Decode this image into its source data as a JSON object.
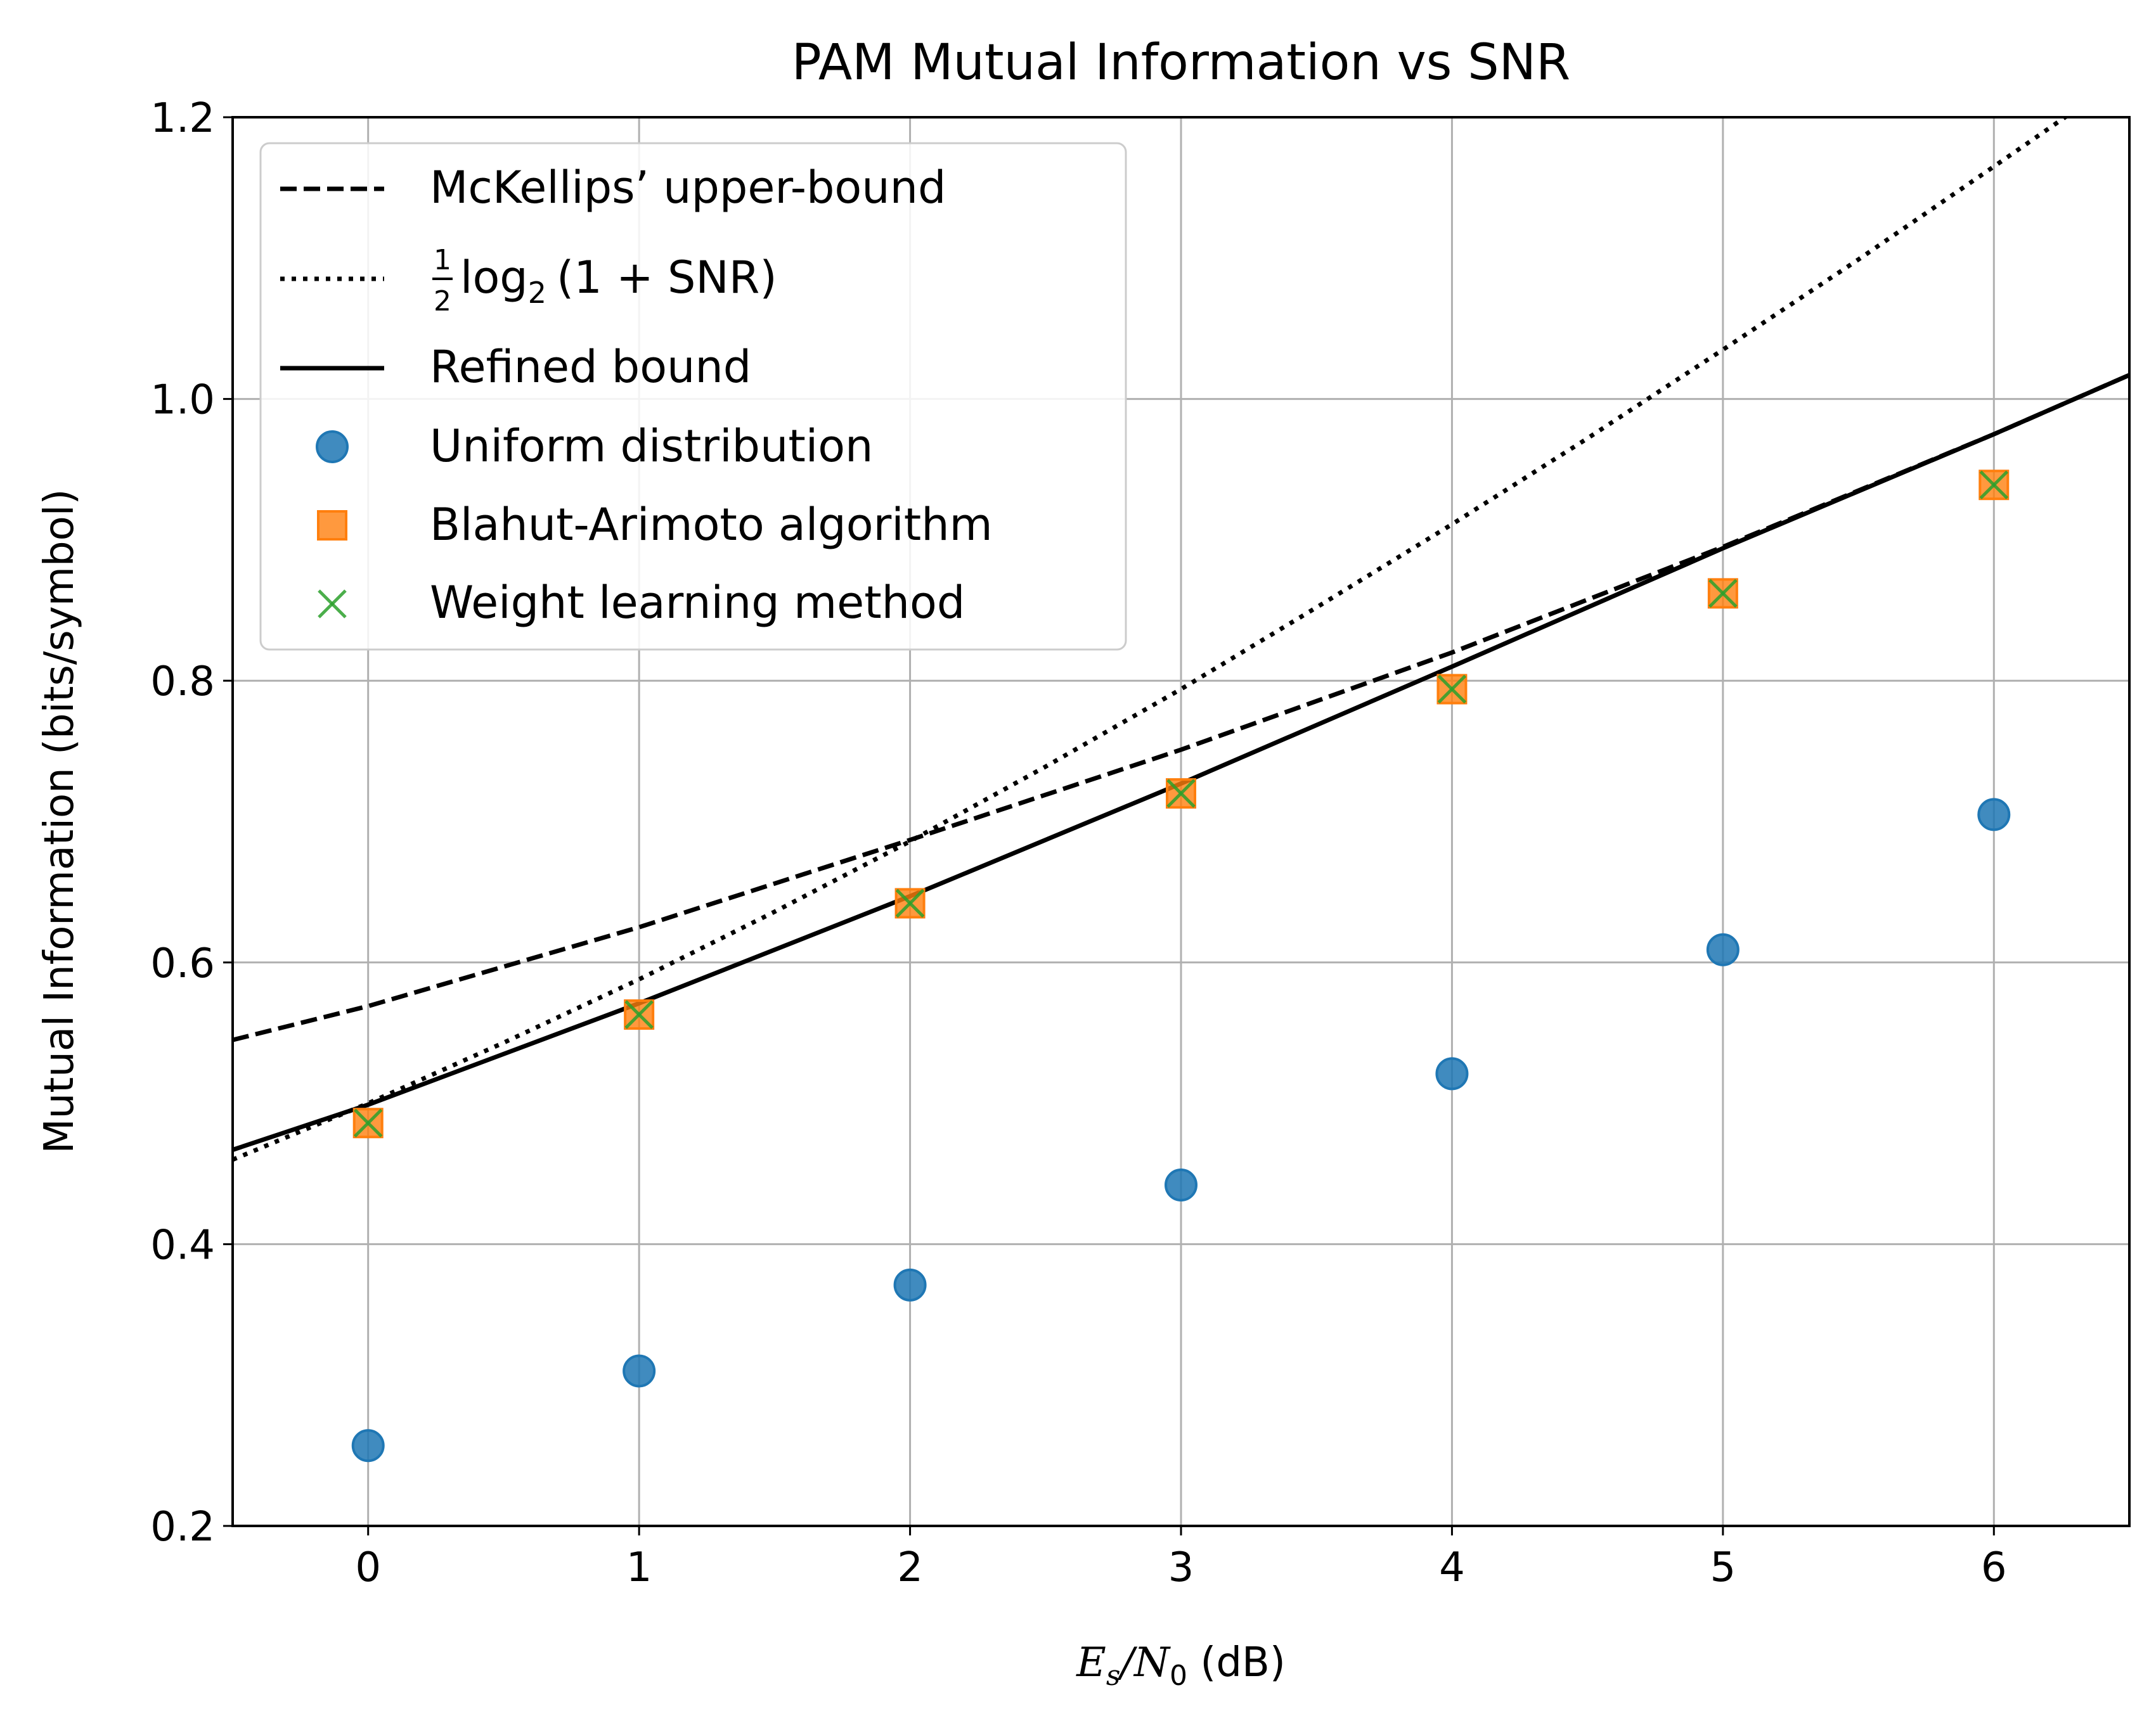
{
  "chart_data": {
    "type": "line",
    "title": "PAM Mutual Information vs SNR",
    "xlabel": {
      "parts": [
        "E",
        "s",
        "/",
        "N",
        "0",
        " (dB)"
      ]
    },
    "ylabel": "Mutual Information (bits/symbol)",
    "xlim": [
      -0.5,
      6.5
    ],
    "ylim": [
      0.2,
      1.2
    ],
    "x_ticks": [
      0,
      1,
      2,
      3,
      4,
      5,
      6
    ],
    "y_ticks": [
      0.2,
      0.4,
      0.6,
      0.8,
      1.0,
      1.2
    ],
    "x_tick_labels": [
      "0",
      "1",
      "2",
      "3",
      "4",
      "5",
      "6"
    ],
    "y_tick_labels": [
      "0.2",
      "0.4",
      "0.6",
      "0.8",
      "1.0",
      "1.2"
    ],
    "grid": true,
    "legend_position": "upper-left",
    "series": [
      {
        "name": "McKellips’ upper-bound",
        "style": "dashed",
        "color": "#000000",
        "x": [
          -0.5,
          0,
          1,
          2,
          3,
          4,
          5,
          6,
          6.5
        ],
        "y": [
          0.545,
          0.569,
          0.625,
          0.687,
          0.751,
          0.82,
          0.895,
          0.975,
          1.017
        ]
      },
      {
        "name_parts": {
          "frac_num": "1",
          "frac_den": "2",
          "fn": "log",
          "sub": "2",
          "arg": "(1 + SNR)"
        },
        "style": "dotted",
        "color": "#000000",
        "x": [
          -0.5,
          0,
          0.5,
          1,
          1.5,
          2,
          2.5,
          3,
          3.5,
          4,
          4.5,
          5,
          5.5,
          6,
          6.3
        ],
        "y": [
          0.46,
          0.5,
          0.543,
          0.588,
          0.636,
          0.686,
          0.739,
          0.794,
          0.852,
          0.911,
          0.972,
          1.035,
          1.099,
          1.165,
          1.205
        ]
      },
      {
        "name": "Refined bound",
        "style": "solid",
        "color": "#000000",
        "x": [
          -0.5,
          0,
          1,
          2,
          3,
          4,
          5,
          6,
          6.5
        ],
        "y": [
          0.467,
          0.499,
          0.571,
          0.647,
          0.727,
          0.81,
          0.894,
          0.975,
          1.017
        ]
      },
      {
        "name": "Uniform distribution",
        "style": "marker-circle",
        "color": "#1f77b4",
        "x": [
          0,
          1,
          2,
          3,
          4,
          5,
          6
        ],
        "y": [
          0.257,
          0.31,
          0.371,
          0.442,
          0.521,
          0.609,
          0.705
        ]
      },
      {
        "name": "Blahut-Arimoto algorithm",
        "style": "marker-square",
        "color": "#ff7f0e",
        "x": [
          0,
          1,
          2,
          3,
          4,
          5,
          6
        ],
        "y": [
          0.486,
          0.563,
          0.642,
          0.72,
          0.794,
          0.862,
          0.939
        ]
      },
      {
        "name": "Weight learning method",
        "style": "marker-x",
        "color": "#2ca02c",
        "x": [
          0,
          1,
          2,
          3,
          4,
          5,
          6
        ],
        "y": [
          0.486,
          0.563,
          0.642,
          0.72,
          0.794,
          0.862,
          0.939
        ]
      }
    ]
  }
}
